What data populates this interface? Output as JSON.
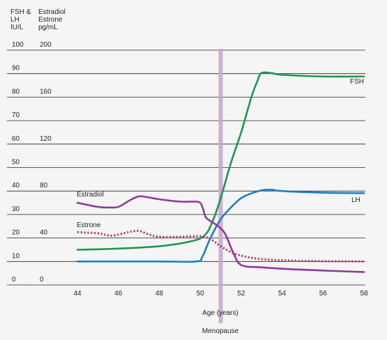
{
  "chart_data": {
    "type": "line",
    "header": {
      "left_lines": [
        "FSH &",
        "LH",
        "IU/L"
      ],
      "right_lines": [
        "Estradiol",
        "Estrone",
        "pg/mL"
      ]
    },
    "left_ticks": [
      "100",
      "90",
      "80",
      "70",
      "60",
      "50",
      "40",
      "30",
      "20",
      "10",
      "0"
    ],
    "right_ticks": [
      "200",
      "160",
      "120",
      "80",
      "40",
      "0"
    ],
    "left_ylim": [
      0,
      100
    ],
    "right_ylim": [
      0,
      200
    ],
    "grid": "horizontal",
    "x_ticks": [
      "44",
      "46",
      "48",
      "50",
      "52",
      "54",
      "56",
      "58"
    ],
    "xlim": [
      43.5,
      58
    ],
    "xlabel": "Age (years)",
    "menopause": {
      "x": 51,
      "label": "Menopause",
      "color": "#c9a6d6"
    },
    "series": [
      {
        "name": "FSH",
        "axis": "left",
        "color": "#1e9650",
        "style": "solid",
        "points": [
          [
            44,
            15
          ],
          [
            46,
            15.5
          ],
          [
            48,
            16.5
          ],
          [
            49.5,
            18.5
          ],
          [
            50.2,
            21
          ],
          [
            50.6,
            27
          ],
          [
            51,
            37
          ],
          [
            51.5,
            52
          ],
          [
            52,
            65
          ],
          [
            52.5,
            80
          ],
          [
            52.8,
            87
          ],
          [
            53,
            90.3
          ],
          [
            53.5,
            90.2
          ],
          [
            54,
            89.5
          ],
          [
            56,
            88.8
          ],
          [
            58,
            88.8
          ]
        ]
      },
      {
        "name": "LH",
        "axis": "left",
        "color": "#1b7fc4",
        "style": "solid",
        "points": [
          [
            44,
            10
          ],
          [
            48,
            10
          ],
          [
            49.8,
            10
          ],
          [
            50.1,
            12
          ],
          [
            50.5,
            20
          ],
          [
            51,
            28
          ],
          [
            51.5,
            33
          ],
          [
            52,
            37
          ],
          [
            52.5,
            39
          ],
          [
            53,
            40.3
          ],
          [
            53.5,
            40.6
          ],
          [
            54,
            40
          ],
          [
            56,
            39.3
          ],
          [
            58,
            39.1
          ]
        ]
      },
      {
        "name": "Estradiol",
        "axis": "right",
        "color": "#8e3a9c",
        "style": "solid",
        "points": [
          [
            44,
            70
          ],
          [
            45,
            66.5
          ],
          [
            45.5,
            66
          ],
          [
            46,
            66.5
          ],
          [
            46.5,
            71.5
          ],
          [
            47,
            75.5
          ],
          [
            47.5,
            74.5
          ],
          [
            48,
            73
          ],
          [
            49,
            71
          ],
          [
            49.7,
            71
          ],
          [
            50,
            70
          ],
          [
            50.15,
            64
          ],
          [
            50.3,
            57
          ],
          [
            50.8,
            51
          ],
          [
            51.2,
            44
          ],
          [
            51.6,
            28
          ],
          [
            52,
            17
          ],
          [
            53,
            15
          ],
          [
            55,
            13
          ],
          [
            58,
            11
          ]
        ]
      },
      {
        "name": "Estrone",
        "axis": "right",
        "color": "#b5385c",
        "style": "dotted",
        "points": [
          [
            44,
            45
          ],
          [
            45,
            44
          ],
          [
            45.7,
            42
          ],
          [
            46.5,
            45
          ],
          [
            47,
            46
          ],
          [
            47.5,
            43
          ],
          [
            48,
            41
          ],
          [
            49,
            41
          ],
          [
            50,
            41.5
          ],
          [
            50.5,
            39
          ],
          [
            51,
            33
          ],
          [
            51.5,
            28
          ],
          [
            52,
            25
          ],
          [
            53,
            22
          ],
          [
            55,
            20.5
          ],
          [
            58,
            20
          ]
        ]
      }
    ],
    "labels": {
      "FSH": "FSH",
      "LH": "LH",
      "Estradiol": "Estradiol",
      "Estrone": "Estrone"
    }
  }
}
